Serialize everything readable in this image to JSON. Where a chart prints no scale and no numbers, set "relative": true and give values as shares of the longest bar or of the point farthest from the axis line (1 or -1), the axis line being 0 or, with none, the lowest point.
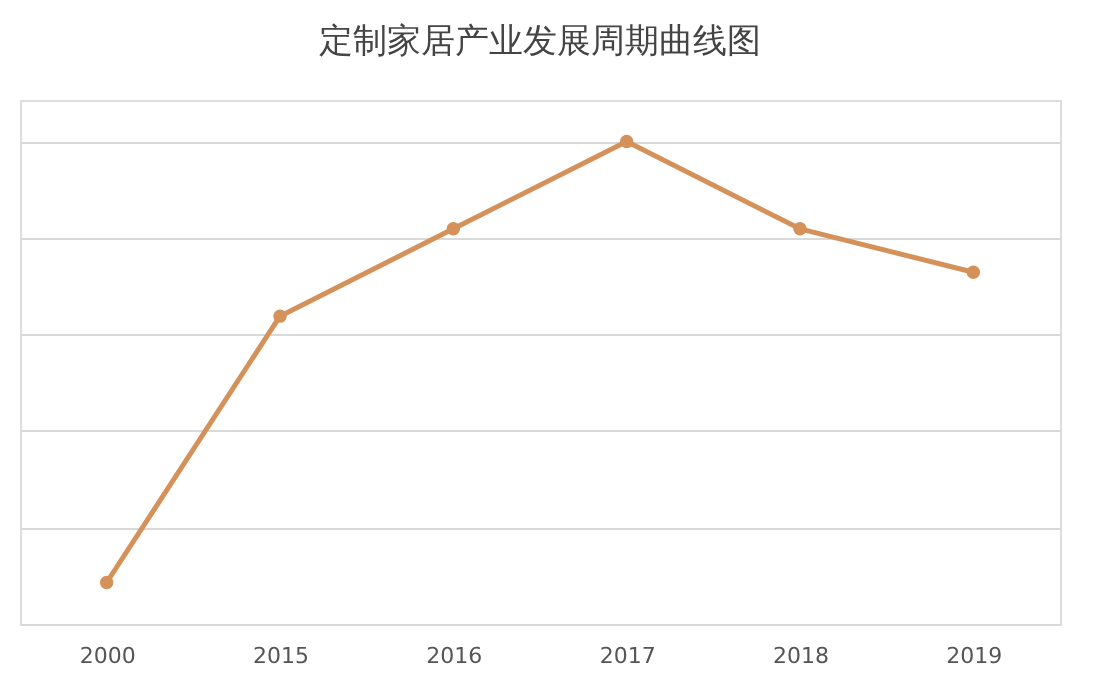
{
  "chart_data": {
    "type": "line",
    "title": "定制家居产业发展周期曲线图",
    "categories": [
      "2000",
      "2015",
      "2016",
      "2017",
      "2018",
      "2019"
    ],
    "relative": true,
    "grid": "y",
    "marker": "circle",
    "line_style": "solid",
    "series": [
      {
        "color": "#d4925a",
        "values": [
          0.086,
          0.638,
          0.819,
          1,
          0.819,
          0.729
        ]
      }
    ]
  }
}
